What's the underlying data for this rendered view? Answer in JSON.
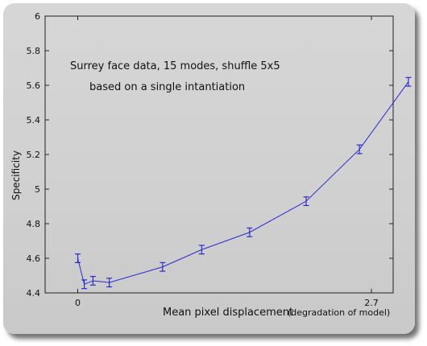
{
  "chart_data": {
    "type": "line",
    "title": "",
    "annotations": [
      "Surrey face data, 15 modes, shuffle 5x5",
      "based on a single intantiation"
    ],
    "xlabel": "Mean pixel displacement",
    "xlabel_suffix": "(degradation of model)",
    "ylabel": "Specificity",
    "ylim": [
      4.4,
      6.0
    ],
    "xlim": [
      -0.3,
      2.9
    ],
    "x_tick_labels": [
      "0",
      "2.7"
    ],
    "x_tick_values": [
      0,
      2.7
    ],
    "y_tick_values": [
      4.4,
      4.6,
      4.8,
      5.0,
      5.2,
      5.4,
      5.6,
      5.8,
      6.0
    ],
    "y_tick_labels": [
      "4.4",
      "4.6",
      "4.8",
      "5",
      "5.2",
      "5.4",
      "5.6",
      "5.8",
      "6"
    ],
    "grid": false,
    "legend": "none",
    "series": [
      {
        "color": "#2b2bcf",
        "x": [
          0.0,
          0.06,
          0.14,
          0.29,
          0.78,
          1.14,
          1.58,
          2.1,
          2.59,
          3.04
        ],
        "y": [
          4.6,
          4.45,
          4.47,
          4.46,
          4.55,
          4.65,
          4.75,
          4.93,
          5.23,
          5.62
        ],
        "err": [
          0.025,
          0.025,
          0.025,
          0.025,
          0.025,
          0.025,
          0.025,
          0.025,
          0.025,
          0.025
        ]
      }
    ]
  }
}
